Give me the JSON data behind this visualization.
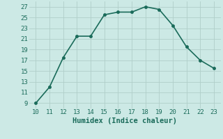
{
  "x": [
    10,
    11,
    12,
    13,
    14,
    15,
    16,
    17,
    18,
    19,
    20,
    21,
    22,
    23
  ],
  "y": [
    9,
    12,
    17.5,
    21.5,
    21.5,
    25.5,
    26,
    26,
    27,
    26.5,
    23.5,
    19.5,
    17,
    15.5
  ],
  "xlabel": "Humidex (Indice chaleur)",
  "line_color": "#1a6b5a",
  "marker": "o",
  "marker_size": 2.5,
  "linewidth": 1.2,
  "xlim": [
    9.5,
    23.5
  ],
  "ylim": [
    8,
    28
  ],
  "yticks": [
    9,
    11,
    13,
    15,
    17,
    19,
    21,
    23,
    25,
    27
  ],
  "xticks": [
    10,
    11,
    12,
    13,
    14,
    15,
    16,
    17,
    18,
    19,
    20,
    21,
    22,
    23
  ],
  "background_color": "#cce9e5",
  "grid_color": "#b0cec9",
  "tick_fontsize": 6.5,
  "xlabel_fontsize": 7.5,
  "xlabel_fontweight": "bold"
}
